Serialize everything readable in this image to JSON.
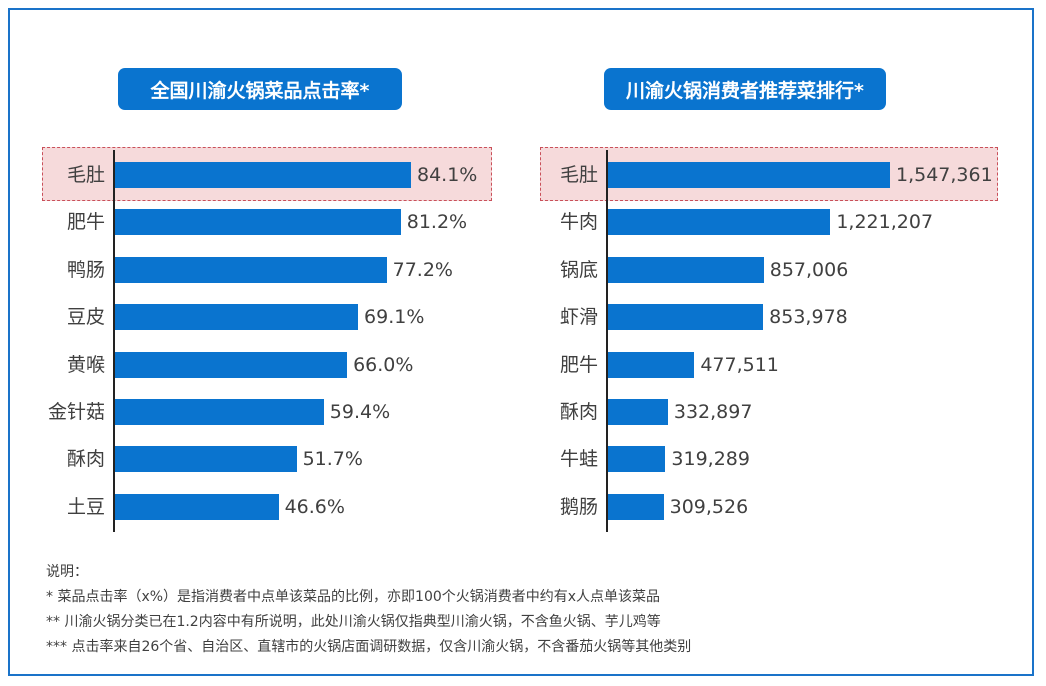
{
  "chart_data": [
    {
      "type": "bar",
      "orientation": "horizontal",
      "title": "全国川渝火锅菜品点击率*",
      "categories": [
        "毛肚",
        "肥牛",
        "鸭肠",
        "豆皮",
        "黄喉",
        "金针菇",
        "酥肉",
        "土豆"
      ],
      "values": [
        84.1,
        81.2,
        77.2,
        69.1,
        66.0,
        59.4,
        51.7,
        46.6
      ],
      "labels": [
        "84.1%",
        "81.2%",
        "77.2%",
        "69.1%",
        "66.0%",
        "59.4%",
        "51.7%",
        "46.6%"
      ],
      "unit": "%",
      "highlight": "毛肚",
      "bar_color": "#0a74cf",
      "highlight_color": "#f6dadb",
      "grid": false
    },
    {
      "type": "bar",
      "orientation": "horizontal",
      "title": "川渝火锅消费者推荐菜排行*",
      "categories": [
        "毛肚",
        "牛肉",
        "锅底",
        "虾滑",
        "肥牛",
        "酥肉",
        "牛蛙",
        "鹅肠"
      ],
      "values": [
        1547361,
        1221207,
        857006,
        853978,
        477511,
        332897,
        319289,
        309526
      ],
      "labels": [
        "1,547,361",
        "1,221,207",
        "857,006",
        "853,978",
        "477,511",
        "332,897",
        "319,289",
        "309,526"
      ],
      "highlight": "毛肚",
      "bar_color": "#0a74cf",
      "highlight_color": "#f6dadb",
      "grid": false
    }
  ],
  "notes": {
    "heading": "说明：",
    "lines": [
      "* 菜品点击率（x%）是指消费者中点单该菜品的比例，亦即100个火锅消费者中约有x人点单该菜品",
      "** 川渝火锅分类已在1.2内容中有所说明，此处川渝火锅仅指典型川渝火锅，不含鱼火锅、芋儿鸡等",
      "*** 点击率来自26个省、自治区、直辖市的火锅店面调研数据，仅含川渝火锅，不含番茄火锅等其他类别"
    ]
  }
}
